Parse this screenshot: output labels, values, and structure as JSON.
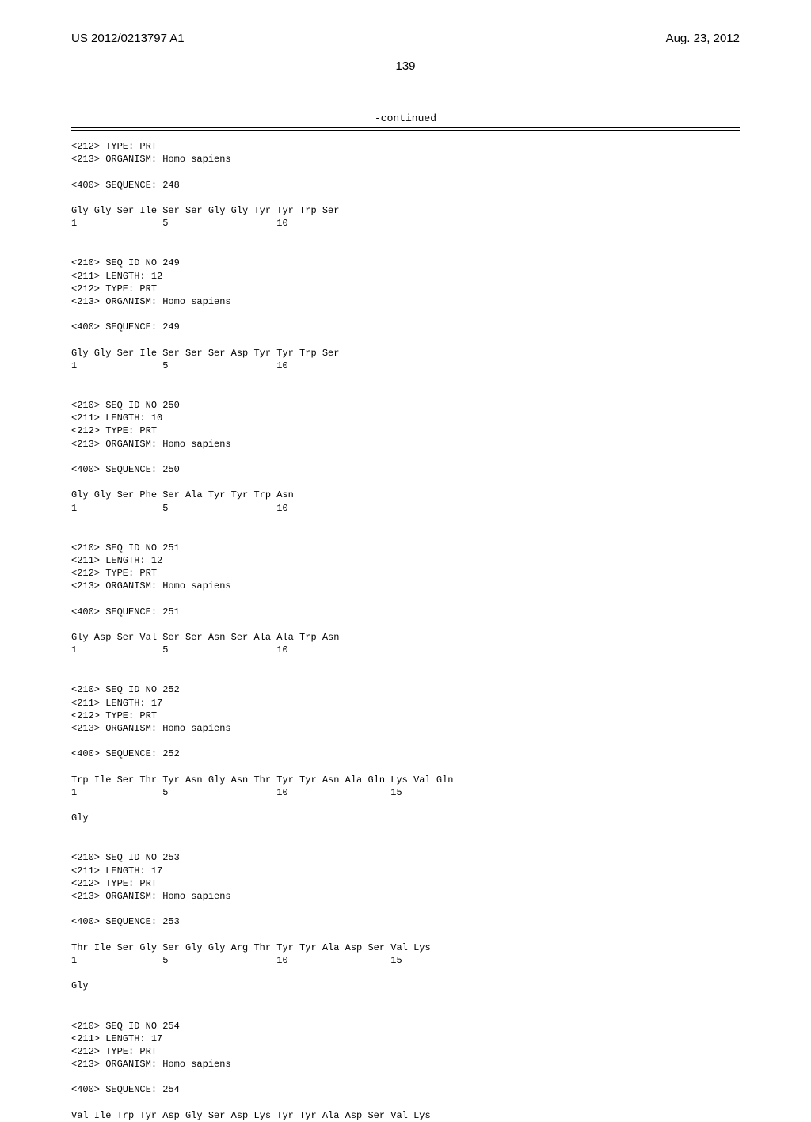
{
  "header": {
    "pub_number": "US 2012/0213797 A1",
    "pub_date": "Aug. 23, 2012"
  },
  "page_number": "139",
  "continued_label": "-continued",
  "sequences": [
    {
      "meta": [
        "<212> TYPE: PRT",
        "<213> ORGANISM: Homo sapiens",
        "",
        "<400> SEQUENCE: 248"
      ],
      "residues": "Gly Gly Ser Ile Ser Ser Gly Gly Tyr Tyr Trp Ser",
      "positions": "1               5                   10"
    },
    {
      "meta": [
        "<210> SEQ ID NO 249",
        "<211> LENGTH: 12",
        "<212> TYPE: PRT",
        "<213> ORGANISM: Homo sapiens",
        "",
        "<400> SEQUENCE: 249"
      ],
      "residues": "Gly Gly Ser Ile Ser Ser Ser Asp Tyr Tyr Trp Ser",
      "positions": "1               5                   10"
    },
    {
      "meta": [
        "<210> SEQ ID NO 250",
        "<211> LENGTH: 10",
        "<212> TYPE: PRT",
        "<213> ORGANISM: Homo sapiens",
        "",
        "<400> SEQUENCE: 250"
      ],
      "residues": "Gly Gly Ser Phe Ser Ala Tyr Tyr Trp Asn",
      "positions": "1               5                   10"
    },
    {
      "meta": [
        "<210> SEQ ID NO 251",
        "<211> LENGTH: 12",
        "<212> TYPE: PRT",
        "<213> ORGANISM: Homo sapiens",
        "",
        "<400> SEQUENCE: 251"
      ],
      "residues": "Gly Asp Ser Val Ser Ser Asn Ser Ala Ala Trp Asn",
      "positions": "1               5                   10"
    },
    {
      "meta": [
        "<210> SEQ ID NO 252",
        "<211> LENGTH: 17",
        "<212> TYPE: PRT",
        "<213> ORGANISM: Homo sapiens",
        "",
        "<400> SEQUENCE: 252"
      ],
      "residues": "Trp Ile Ser Thr Tyr Asn Gly Asn Thr Tyr Tyr Asn Ala Gln Lys Val Gln",
      "positions": "1               5                   10                  15",
      "tail": "Gly"
    },
    {
      "meta": [
        "<210> SEQ ID NO 253",
        "<211> LENGTH: 17",
        "<212> TYPE: PRT",
        "<213> ORGANISM: Homo sapiens",
        "",
        "<400> SEQUENCE: 253"
      ],
      "residues": "Thr Ile Ser Gly Ser Gly Gly Arg Thr Tyr Tyr Ala Asp Ser Val Lys",
      "positions": "1               5                   10                  15",
      "tail": "Gly"
    },
    {
      "meta": [
        "<210> SEQ ID NO 254",
        "<211> LENGTH: 17",
        "<212> TYPE: PRT",
        "<213> ORGANISM: Homo sapiens",
        "",
        "<400> SEQUENCE: 254"
      ],
      "residues": "Val Ile Trp Tyr Asp Gly Ser Asp Lys Tyr Tyr Ala Asp Ser Val Lys",
      "positions": ""
    }
  ]
}
